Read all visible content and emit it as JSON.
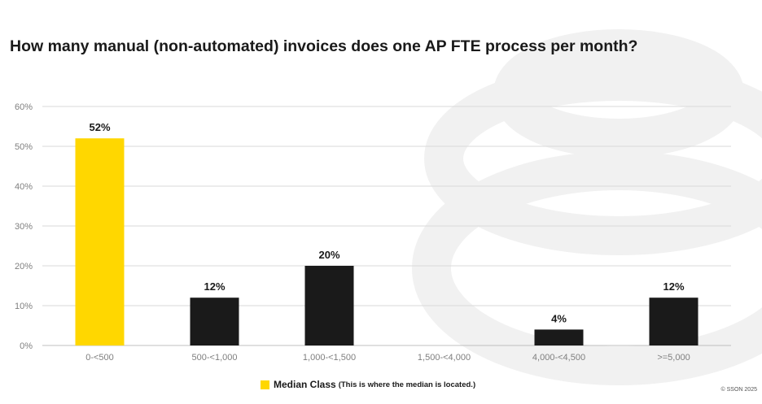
{
  "page": {
    "title": "How many manual (non-automated) invoices does one AP FTE process per month?",
    "copyright": "© SSON 2025"
  },
  "legend": {
    "label": "Median Class",
    "note": "(This is where the median is located.)"
  },
  "colors": {
    "median": "#FFD700",
    "bar": "#1a1a1a",
    "grid": "#d9d9d9",
    "axis_text": "#7f7f7f"
  },
  "chart_data": {
    "type": "bar",
    "title": "How many manual (non-automated) invoices does one AP FTE process per month?",
    "xlabel": "",
    "ylabel": "",
    "categories": [
      "0-<500",
      "500-<1,000",
      "1,000-<1,500",
      "1,500-<4,000",
      "4,000-<4,500",
      ">=5,000"
    ],
    "values": [
      52,
      12,
      20,
      null,
      4,
      12
    ],
    "data_labels": [
      "52%",
      "12%",
      "20%",
      "",
      "4%",
      "12%"
    ],
    "median_category": "0-<500",
    "y_ticks": [
      "0%",
      "10%",
      "20%",
      "30%",
      "40%",
      "50%",
      "60%"
    ],
    "ylim": [
      0,
      60
    ],
    "grid": true,
    "legend_position": "bottom"
  }
}
